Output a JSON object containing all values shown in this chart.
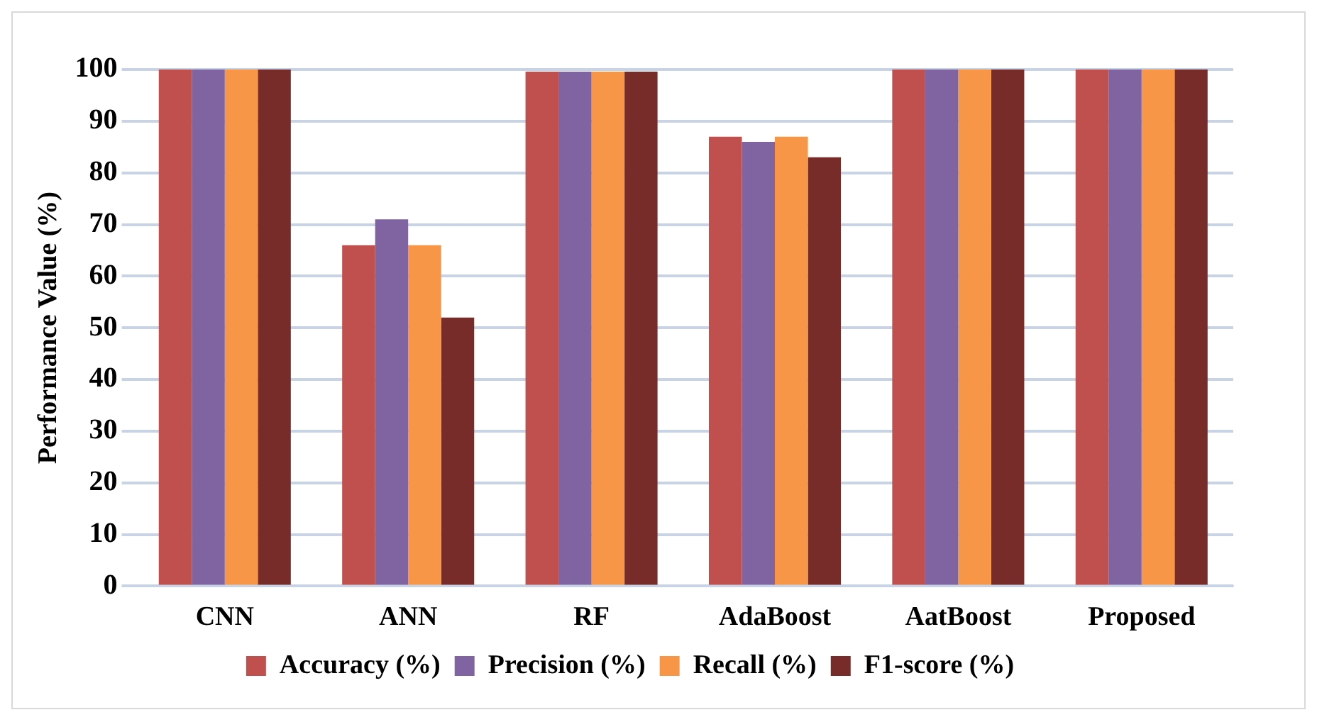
{
  "chart_data": {
    "type": "bar",
    "ylabel": "Performance Value (%)",
    "categories": [
      "CNN",
      "ANN",
      "RF",
      "AdaBoost",
      "AatBoost",
      "Proposed"
    ],
    "series": [
      {
        "name": "Accuracy (%)",
        "color": "#c0504d",
        "values": [
          100,
          66,
          99.6,
          87,
          100,
          100
        ]
      },
      {
        "name": "Precision (%)",
        "color": "#8064a2",
        "values": [
          100,
          71,
          99.6,
          86,
          100,
          100
        ]
      },
      {
        "name": "Recall (%)",
        "color": "#f79646",
        "values": [
          100,
          66,
          99.6,
          87,
          100,
          100
        ]
      },
      {
        "name": "F1-score (%)",
        "color": "#772c2a",
        "values": [
          100,
          52,
          99.6,
          83,
          100,
          100
        ]
      }
    ],
    "ylim": [
      0,
      100
    ],
    "yticks": [
      0,
      10,
      20,
      30,
      40,
      50,
      60,
      70,
      80,
      90,
      100
    ],
    "grid": "y",
    "legend": "bottom"
  }
}
